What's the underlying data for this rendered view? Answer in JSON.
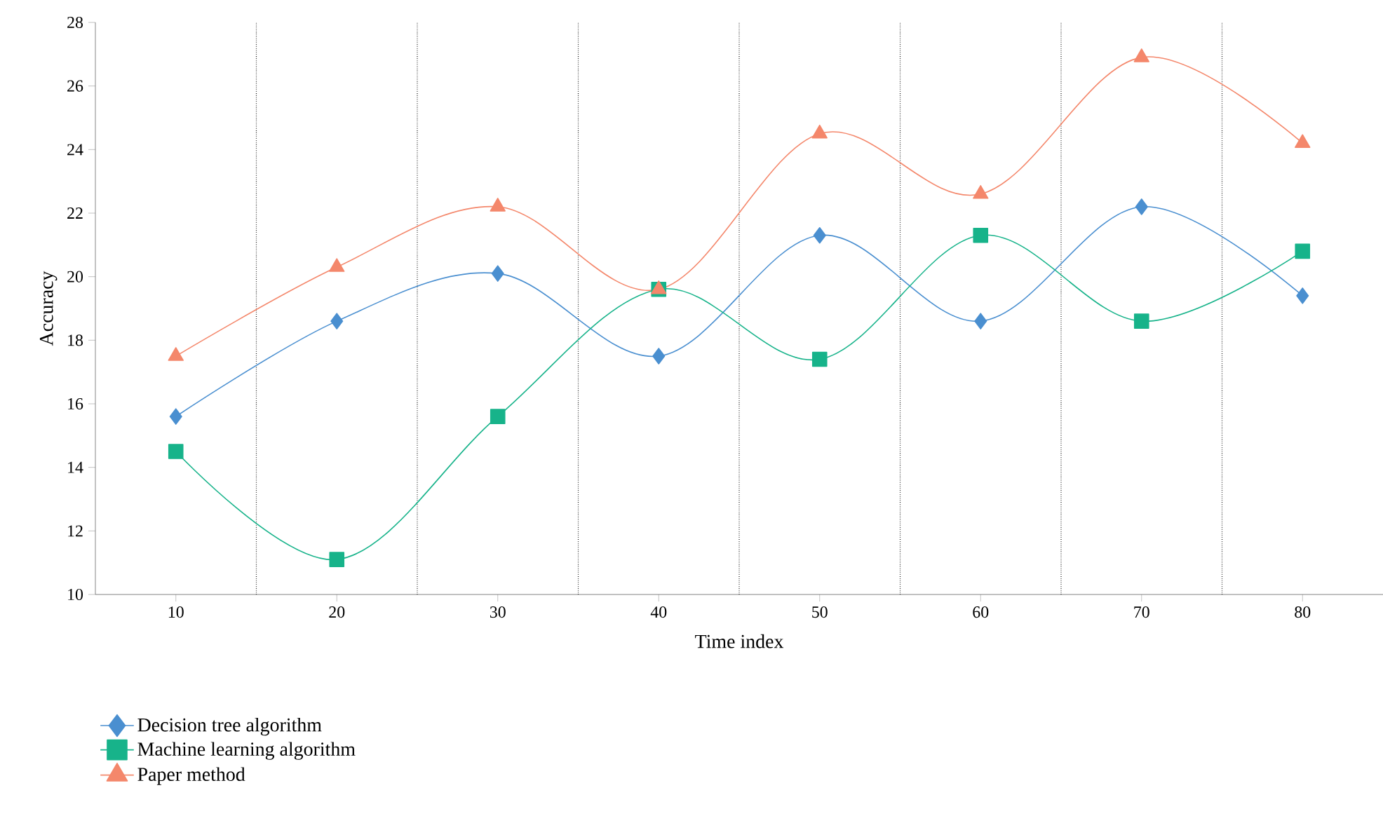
{
  "chart_data": {
    "type": "line",
    "xlabel": "Time index",
    "ylabel": "Accuracy",
    "categories": [
      "10",
      "20",
      "30",
      "40",
      "50",
      "60",
      "70",
      "80"
    ],
    "ylim": [
      10,
      28
    ],
    "yticks": [
      10,
      12,
      14,
      16,
      18,
      20,
      22,
      24,
      26,
      28
    ],
    "grid": "x",
    "legend": "bottom left",
    "series": [
      {
        "name": "Decision tree algorithm",
        "color": "#4a8fd0",
        "marker": "diamond",
        "values": [
          15.6,
          18.6,
          20.1,
          17.5,
          21.3,
          18.6,
          22.2,
          19.4
        ]
      },
      {
        "name": "Machine learning algorithm",
        "color": "#17b38a",
        "marker": "square",
        "values": [
          14.5,
          11.1,
          15.6,
          19.6,
          17.4,
          21.3,
          18.6,
          20.8
        ]
      },
      {
        "name": "Paper method",
        "color": "#f4876b",
        "marker": "triangle",
        "values": [
          17.5,
          20.3,
          22.2,
          19.6,
          24.5,
          22.6,
          26.9,
          24.2
        ]
      }
    ]
  }
}
